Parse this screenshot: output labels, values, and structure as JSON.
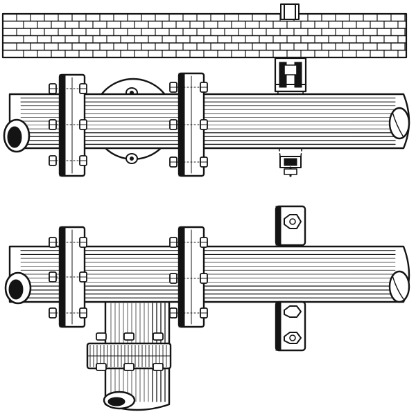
{
  "figure": {
    "kind": "engraved technical illustration",
    "colors": {
      "ink": "#141414",
      "paper": "#ffffff"
    },
    "upper_assembly": {
      "parts": [
        "brick-wall",
        "horizontal-pipe",
        "flange-left",
        "flange-right",
        "valve-disc",
        "wall-hanger-bracket",
        "hanger-bolt"
      ]
    },
    "lower_assembly": {
      "parts": [
        "horizontal-pipe",
        "flange-left",
        "flange-right",
        "branch-pipe",
        "branch-flange",
        "pipe-clamp-upper",
        "pipe-clamp-lower"
      ]
    }
  }
}
